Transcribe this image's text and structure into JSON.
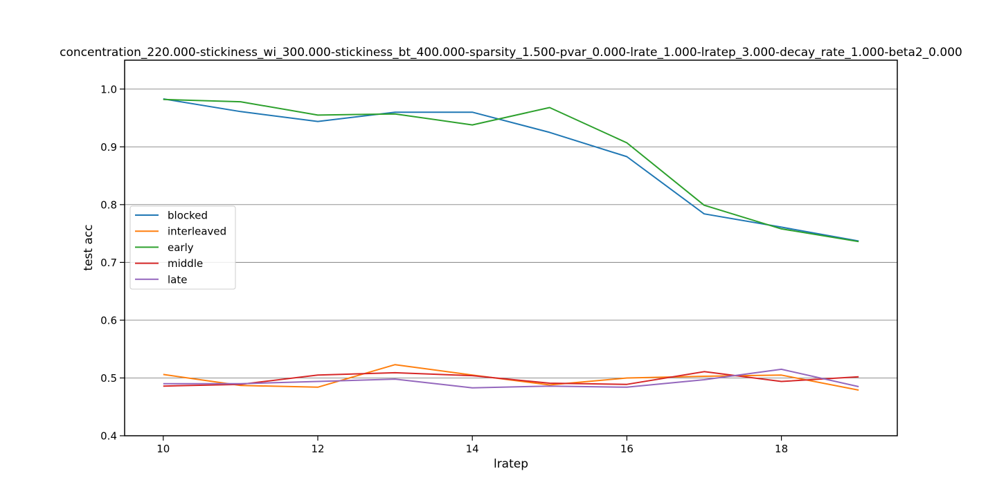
{
  "chart_data": {
    "type": "line",
    "title": "concentration_220.000-stickiness_wi_300.000-stickiness_bt_400.000-sparsity_1.500-pvar_0.000-lrate_1.000-lratep_3.000-decay_rate_1.000-beta2_0.000",
    "xlabel": "lratep",
    "ylabel": "test acc",
    "xlim": [
      9.5,
      19.5
    ],
    "ylim": [
      0.4,
      1.05
    ],
    "xticks": [
      10,
      12,
      14,
      16,
      18
    ],
    "yticks": [
      0.4,
      0.5,
      0.6,
      0.7,
      0.8,
      0.9,
      1.0
    ],
    "ytick_labels": [
      "0.4",
      "0.5",
      "0.6",
      "0.7",
      "0.8",
      "0.9",
      "1.0"
    ],
    "grid": "horizontal",
    "legend_position": "center-left",
    "x": [
      10,
      11,
      12,
      13,
      14,
      15,
      16,
      17,
      18,
      19
    ],
    "series": [
      {
        "name": "blocked",
        "color": "#1f77b4",
        "values": [
          0.983,
          0.961,
          0.944,
          0.96,
          0.96,
          0.925,
          0.883,
          0.784,
          0.761,
          0.737
        ]
      },
      {
        "name": "interleaved",
        "color": "#ff7f0e",
        "values": [
          0.506,
          0.487,
          0.484,
          0.523,
          0.505,
          0.488,
          0.5,
          0.503,
          0.505,
          0.479
        ]
      },
      {
        "name": "early",
        "color": "#2ca02c",
        "values": [
          0.982,
          0.978,
          0.955,
          0.957,
          0.938,
          0.968,
          0.907,
          0.799,
          0.758,
          0.736
        ]
      },
      {
        "name": "middle",
        "color": "#d62728",
        "values": [
          0.486,
          0.489,
          0.505,
          0.509,
          0.504,
          0.491,
          0.489,
          0.511,
          0.494,
          0.502
        ]
      },
      {
        "name": "late",
        "color": "#9467bd",
        "values": [
          0.49,
          0.49,
          0.494,
          0.498,
          0.483,
          0.486,
          0.484,
          0.497,
          0.515,
          0.485
        ]
      }
    ]
  }
}
